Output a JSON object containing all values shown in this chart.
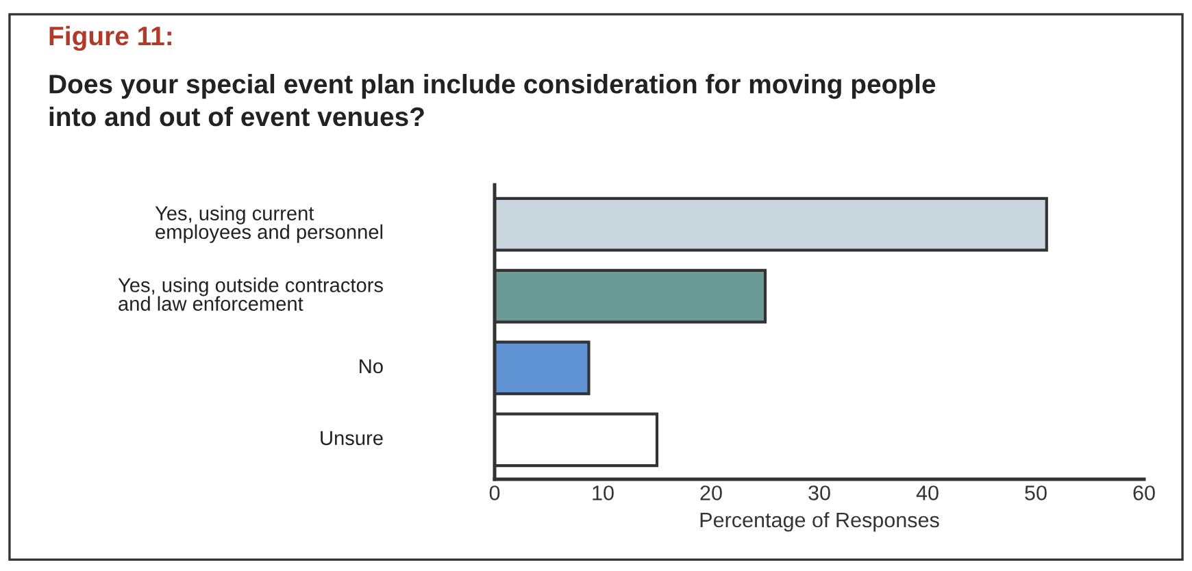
{
  "chart_data": {
    "type": "bar",
    "orientation": "horizontal",
    "title": "Figure 11:",
    "subtitle": "Does your special event plan include consideration for moving people\ninto and out of event venues?",
    "categories": [
      "Yes, using current\nemployees and personnel",
      "Yes, using outside contractors\nand law enforcement",
      "No",
      "Unsure"
    ],
    "values": [
      51,
      25,
      8.7,
      15
    ],
    "colors": [
      "#c9d6dd",
      "#6c9a95",
      "#5f93d3",
      "#ffffff"
    ],
    "xlim": [
      0,
      60
    ],
    "xticks": [
      0,
      10,
      20,
      30,
      40,
      50,
      60
    ],
    "xlabel": "Percentage of Responses",
    "grid": false,
    "legend": false
  }
}
